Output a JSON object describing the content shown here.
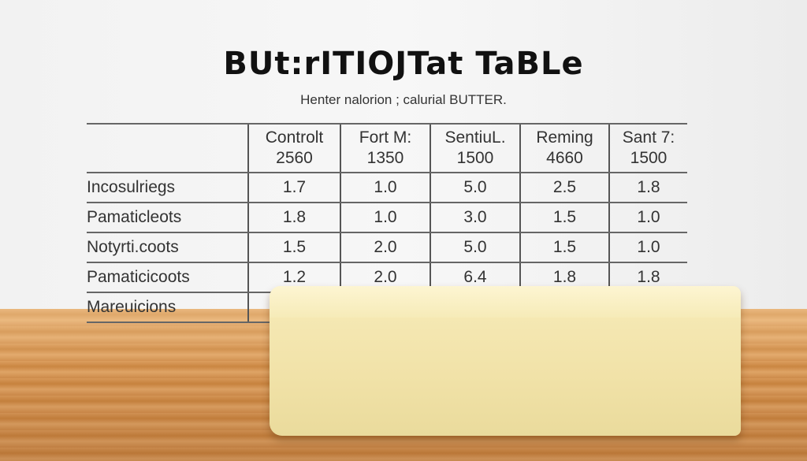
{
  "title": "BUt:rITIOJTat TaBLe",
  "subtitle": "Henter nalorion ; calurial BUTTER.",
  "table": {
    "headers": [
      [
        "Controlt",
        "2560"
      ],
      [
        "Fort M:",
        "1350"
      ],
      [
        "SentiuL.",
        "1500"
      ],
      [
        "Reming",
        "4660"
      ],
      [
        "Sant 7:",
        "1500"
      ]
    ],
    "rows": [
      {
        "label": "Incosulriegs",
        "values": [
          "1.7",
          "1.0",
          "5.0",
          "2.5",
          "1.8"
        ]
      },
      {
        "label": "Pamaticleots",
        "values": [
          "1.8",
          "1.0",
          "3.0",
          "1.5",
          "1.0"
        ]
      },
      {
        "label": "Notyrti.coots",
        "values": [
          "1.5",
          "2.0",
          "5.0",
          "1.5",
          "1.0"
        ]
      },
      {
        "label": "Pamaticicoots",
        "values": [
          "1.2",
          "2.0",
          "6.4",
          "1.8",
          "1.8"
        ]
      },
      {
        "label": "Mareuicions",
        "values": [
          "",
          "",
          "",
          "",
          ""
        ]
      }
    ]
  }
}
